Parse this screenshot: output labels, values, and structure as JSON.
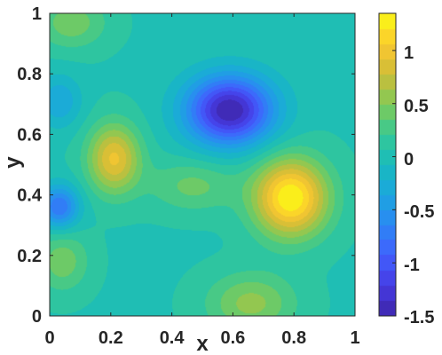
{
  "chart_data": {
    "type": "heatmap",
    "subtype": "filled-contour",
    "colormap": "parula",
    "title": "",
    "xlabel": "x",
    "ylabel": "y",
    "xlim": [
      0,
      1
    ],
    "ylim": [
      0,
      1
    ],
    "xticks": [
      "0",
      "0.2",
      "0.4",
      "0.6",
      "0.8",
      "1"
    ],
    "yticks": [
      "0",
      "0.2",
      "0.4",
      "0.6",
      "0.8",
      "1"
    ],
    "colorbar": {
      "range": [
        -1.5,
        1.35
      ],
      "ticks": [
        "1",
        "0.5",
        "0",
        "-0.5",
        "-1",
        "-1.5"
      ]
    },
    "features": [
      {
        "kind": "trough",
        "x": 0.59,
        "y": 0.68,
        "value": -1.5
      },
      {
        "kind": "peak",
        "x": 0.79,
        "y": 0.39,
        "value": 1.35
      },
      {
        "kind": "peak",
        "x": 0.21,
        "y": 0.52,
        "value": 0.95
      },
      {
        "kind": "trough",
        "x": 0.03,
        "y": 0.36,
        "value": -0.8
      },
      {
        "kind": "trough",
        "x": 0.03,
        "y": 0.71,
        "value": -0.35
      },
      {
        "kind": "bump",
        "x": 0.04,
        "y": 0.18,
        "value": 0.45
      },
      {
        "kind": "bump",
        "x": 0.07,
        "y": 0.97,
        "value": 0.45
      },
      {
        "kind": "bump",
        "x": 0.66,
        "y": 0.04,
        "value": 0.55
      },
      {
        "kind": "bump",
        "x": 0.47,
        "y": 0.43,
        "value": 0.4
      }
    ]
  }
}
